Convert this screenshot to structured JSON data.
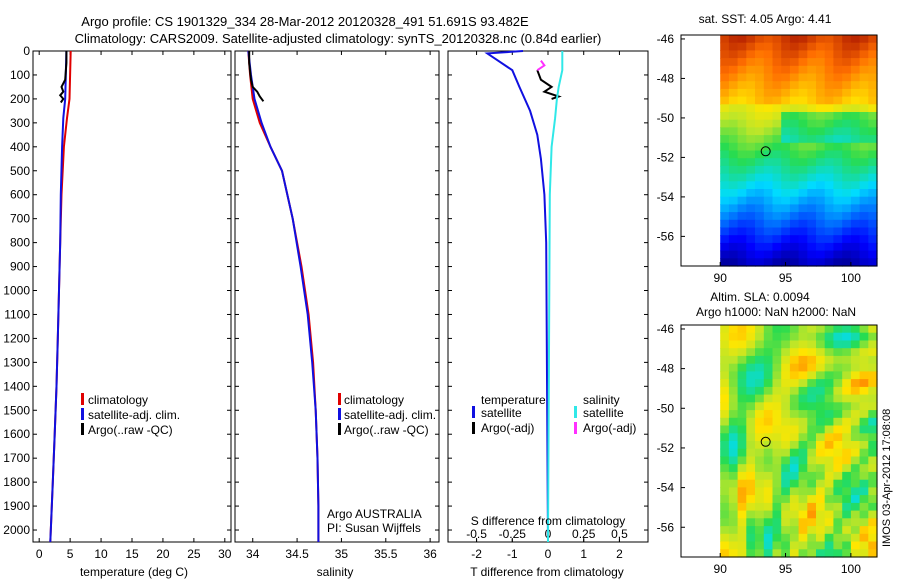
{
  "title": {
    "line1": "Argo profile: CS 1901329_334 28-Mar-2012 20120328_491 51.691S 93.482E",
    "line2": "Climatology: CARS2009. Satellite-adjusted climatology: synTS_20120328.nc (0.84d earlier)"
  },
  "colors": {
    "climatology": "#e00000",
    "satellite": "#1010e0",
    "argo": "#000000",
    "sal_satellite": "#30e8e8",
    "sal_argo": "#ff30ff"
  },
  "legend_temp": {
    "climatology": "climatology",
    "satellite": "satellite-adj. clim.",
    "argo": "Argo(..raw -QC)"
  },
  "legend_sal": {
    "climatology": "climatology",
    "satellite": "satellite-adj. clim.",
    "argo": "Argo(..raw -QC)"
  },
  "legend_diff": {
    "temp_header": "temperature",
    "sal_header": "salinity",
    "temp_satellite": "satellite",
    "temp_argo": "Argo(-adj)",
    "sal_satellite": "satellite",
    "sal_argo": "Argo(-adj)"
  },
  "float_info": {
    "line1": "Argo AUSTRALIA",
    "line2": "PI: Susan Wijffels"
  },
  "map1_title": "sat. SST: 4.05 Argo: 4.41",
  "map2_title": {
    "line1": "Altim. SLA: 0.0094",
    "line2": "Argo h1000: NaN h2000: NaN"
  },
  "side_stamp": "IMOS 03-Apr-2012 17:08:08",
  "chart_data": [
    {
      "type": "line",
      "name": "temperature profile",
      "xlabel": "temperature (deg C)",
      "ylabel": "",
      "xlim": [
        -1,
        31
      ],
      "ylim": [
        2050,
        0
      ],
      "xticks": [
        0,
        5,
        10,
        15,
        20,
        25,
        30
      ],
      "yticks": [
        0,
        100,
        200,
        300,
        400,
        500,
        600,
        700,
        800,
        900,
        1000,
        1100,
        1200,
        1300,
        1400,
        1500,
        1600,
        1700,
        1800,
        1900,
        2000
      ],
      "series": [
        {
          "name": "climatology",
          "color": "#e00000",
          "x": [
            5.1,
            5.0,
            4.9,
            4.5,
            4.0,
            3.6,
            3.4,
            3.2,
            3.0,
            2.8,
            2.5,
            2.2,
            1.8
          ],
          "y": [
            0,
            100,
            200,
            280,
            400,
            600,
            800,
            1000,
            1200,
            1400,
            1600,
            1800,
            2050
          ]
        },
        {
          "name": "satellite-adj. clim.",
          "color": "#1010e0",
          "x": [
            4.4,
            4.3,
            4.2,
            3.9,
            3.7,
            3.5,
            3.4,
            3.2,
            3.0,
            2.8,
            2.5,
            2.2,
            1.8
          ],
          "y": [
            0,
            100,
            200,
            280,
            400,
            600,
            800,
            1000,
            1200,
            1400,
            1600,
            1800,
            2050
          ]
        },
        {
          "name": "Argo(..raw -QC)",
          "color": "#000000",
          "x": [
            4.4,
            4.4,
            4.2,
            3.6,
            3.9,
            3.4,
            3.9,
            3.5
          ],
          "y": [
            0,
            50,
            120,
            150,
            170,
            185,
            200,
            215
          ]
        }
      ]
    },
    {
      "type": "line",
      "name": "salinity profile",
      "xlabel": "salinity",
      "xlim": [
        33.8,
        36.1
      ],
      "ylim": [
        2050,
        0
      ],
      "xticks": [
        34,
        34.5,
        35,
        35.5,
        36
      ],
      "xticklabels": [
        "34",
        "34.5",
        "35",
        "35.5",
        "36"
      ],
      "series": [
        {
          "name": "climatology",
          "color": "#e00000",
          "x": [
            33.95,
            33.97,
            34.0,
            34.08,
            34.2,
            34.33,
            34.45,
            34.55,
            34.63,
            34.68,
            34.71,
            34.73,
            34.74,
            34.74
          ],
          "y": [
            0,
            100,
            200,
            300,
            400,
            500,
            700,
            900,
            1100,
            1300,
            1500,
            1700,
            1900,
            2050
          ]
        },
        {
          "name": "satellite-adj. clim.",
          "color": "#1010e0",
          "x": [
            33.95,
            33.98,
            34.02,
            34.1,
            34.2,
            34.33,
            34.45,
            34.54,
            34.62,
            34.67,
            34.71,
            34.73,
            34.74,
            34.74
          ],
          "y": [
            0,
            100,
            200,
            300,
            400,
            500,
            700,
            900,
            1100,
            1300,
            1500,
            1700,
            1900,
            2050
          ]
        },
        {
          "name": "Argo(..raw -QC)",
          "color": "#000000",
          "x": [
            33.96,
            33.96,
            33.98,
            34.0,
            34.05,
            34.08,
            34.12
          ],
          "y": [
            0,
            50,
            120,
            150,
            170,
            190,
            210
          ]
        }
      ]
    },
    {
      "type": "line",
      "name": "difference from climatology",
      "xlabel": "T difference from climatology",
      "xlabel_top": "S difference from climatology",
      "xlim": [
        -2.8,
        2.8
      ],
      "ylim": [
        2050,
        0
      ],
      "xticks": [
        -2,
        -1,
        0,
        1,
        2
      ],
      "top_xticks": [
        -0.5,
        -0.25,
        0,
        0.25,
        0.5
      ],
      "top_xticklabels": [
        "-0.5",
        "-0.25",
        "0",
        "0.25",
        "0.5"
      ],
      "series": [
        {
          "name": "temperature satellite",
          "color": "#1010e0",
          "x": [
            -0.7,
            -1.7,
            -1.5,
            -1.0,
            -0.8,
            -0.5,
            -0.3,
            -0.2,
            -0.1,
            -0.05,
            0
          ],
          "y": [
            0,
            10,
            30,
            80,
            150,
            250,
            350,
            450,
            600,
            800,
            2050
          ]
        },
        {
          "name": "temperature Argo(-adj)",
          "color": "#000000",
          "x": [
            -0.3,
            -0.2,
            0.1,
            -0.1,
            0.3,
            0.1
          ],
          "y": [
            80,
            120,
            150,
            170,
            190,
            200
          ]
        },
        {
          "name": "salinity satellite",
          "color": "#30e8e8",
          "x": [
            0.4,
            0.4,
            0.3,
            0.25,
            0.2,
            0.1,
            0.05,
            0
          ],
          "y": [
            0,
            80,
            150,
            200,
            280,
            400,
            600,
            2050
          ]
        },
        {
          "name": "salinity Argo(-adj)",
          "color": "#ff30ff",
          "x": [
            -0.2,
            -0.1,
            -0.3
          ],
          "y": [
            40,
            60,
            80
          ]
        }
      ]
    },
    {
      "type": "heatmap",
      "name": "SST map",
      "title": "sat. SST: 4.05 Argo: 4.41",
      "xticks": [
        90,
        95,
        100
      ],
      "yticks": [
        -46,
        -48,
        -50,
        -52,
        -54,
        -56
      ],
      "xlim": [
        87,
        102
      ],
      "ylim": [
        -57.5,
        -45.8
      ],
      "marker": {
        "lon": 93.48,
        "lat": -51.69
      }
    },
    {
      "type": "heatmap",
      "name": "SLA map",
      "title": "Altim. SLA: 0.0094",
      "xticks": [
        90,
        95,
        100
      ],
      "yticks": [
        -46,
        -48,
        -50,
        -52,
        -54,
        -56
      ],
      "xlim": [
        87,
        102
      ],
      "ylim": [
        -57.5,
        -45.8
      ],
      "marker": {
        "lon": 93.48,
        "lat": -51.69
      }
    }
  ]
}
